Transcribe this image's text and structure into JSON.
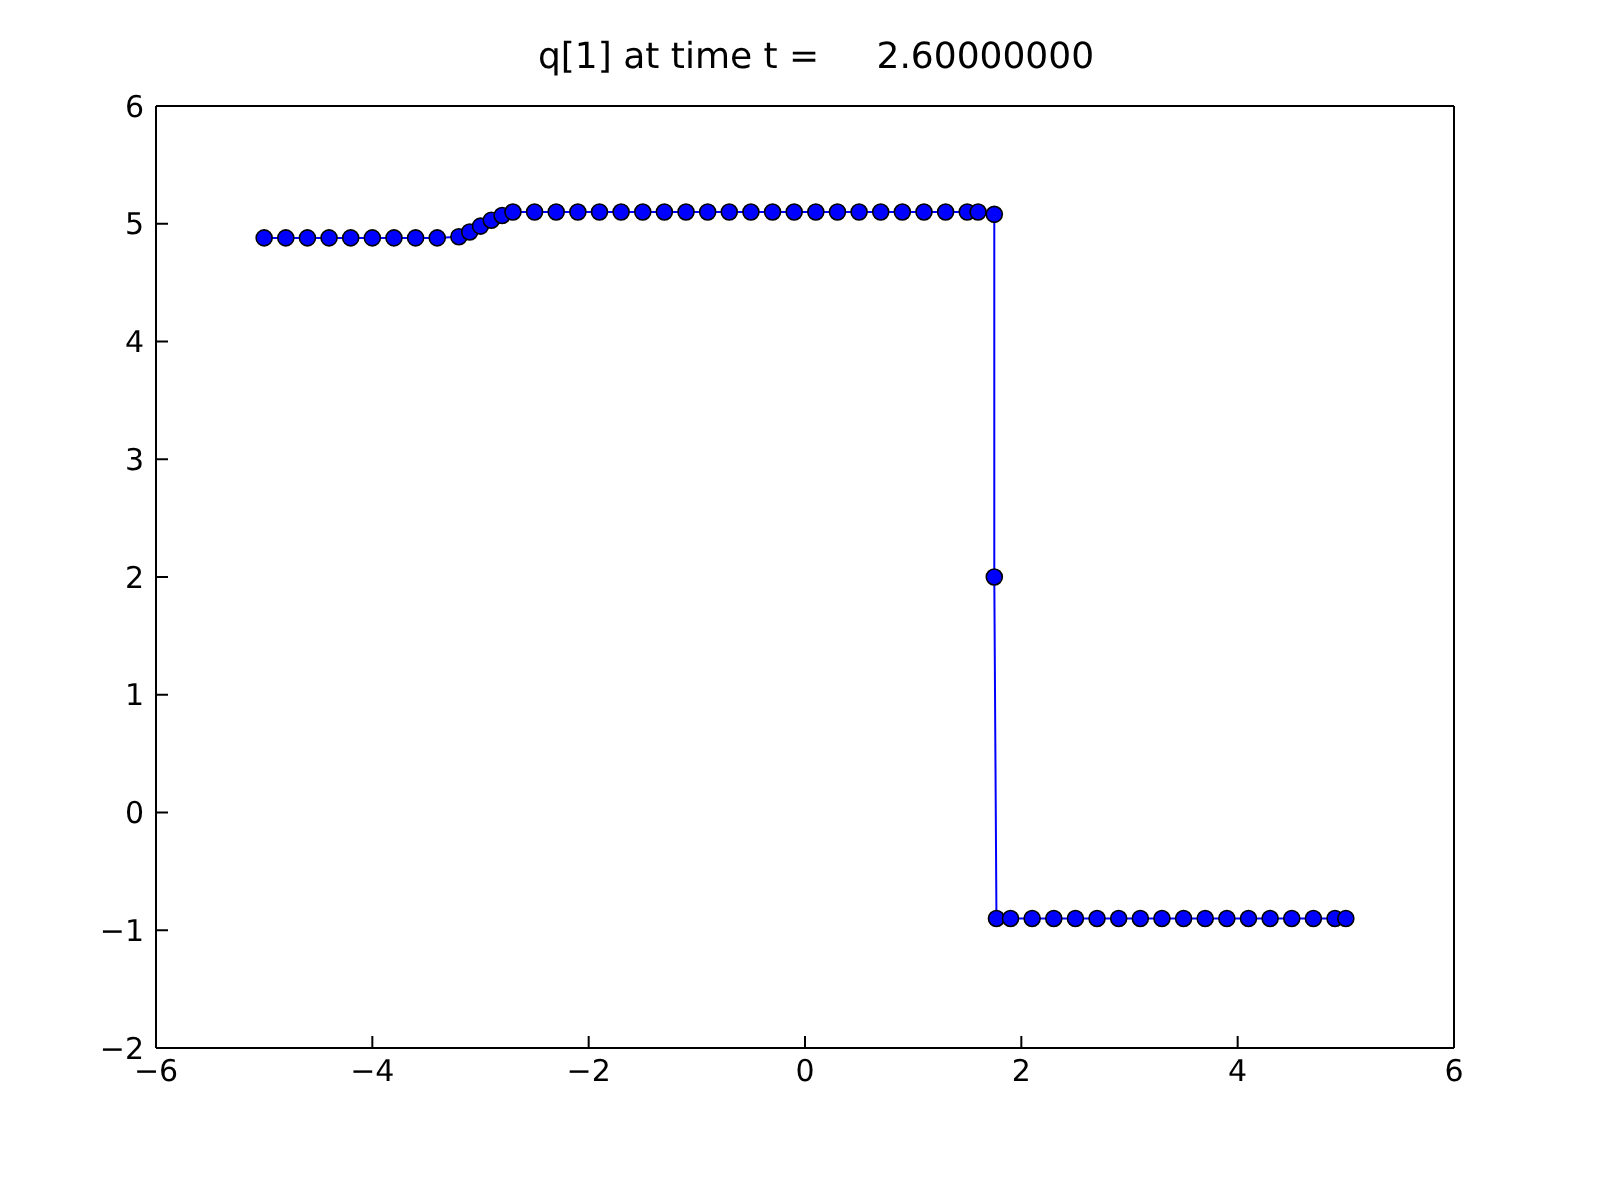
{
  "chart_data": {
    "type": "line",
    "title": "q[1] at time t =     2.60000000",
    "x": [
      -5,
      -4.8,
      -4.6,
      -4.4,
      -4.2,
      -4.0,
      -3.8,
      -3.6,
      -3.4,
      -3.2,
      -3.1,
      -3.0,
      -2.9,
      -2.8,
      -2.7,
      -2.5,
      -2.3,
      -2.1,
      -1.9,
      -1.7,
      -1.5,
      -1.3,
      -1.1,
      -0.9,
      -0.7,
      -0.5,
      -0.3,
      -0.1,
      0.1,
      0.3,
      0.5,
      0.7,
      0.9,
      1.1,
      1.3,
      1.5,
      1.6,
      1.75,
      1.75,
      1.77,
      1.9,
      2.1,
      2.3,
      2.5,
      2.7,
      2.9,
      3.1,
      3.3,
      3.5,
      3.7,
      3.9,
      4.1,
      4.3,
      4.5,
      4.7,
      4.9,
      5.0
    ],
    "series": [
      {
        "color": "#0000ff",
        "values": [
          4.88,
          4.88,
          4.88,
          4.88,
          4.88,
          4.88,
          4.88,
          4.88,
          4.88,
          4.89,
          4.93,
          4.98,
          5.03,
          5.07,
          5.1,
          5.1,
          5.1,
          5.1,
          5.1,
          5.1,
          5.1,
          5.1,
          5.1,
          5.1,
          5.1,
          5.1,
          5.1,
          5.1,
          5.1,
          5.1,
          5.1,
          5.1,
          5.1,
          5.1,
          5.1,
          5.1,
          5.1,
          5.08,
          2.0,
          -0.9,
          -0.9,
          -0.9,
          -0.9,
          -0.9,
          -0.9,
          -0.9,
          -0.9,
          -0.9,
          -0.9,
          -0.9,
          -0.9,
          -0.9,
          -0.9,
          -0.9,
          -0.9,
          -0.9,
          -0.9
        ]
      }
    ],
    "xlim": [
      -6,
      6
    ],
    "xticks": [
      -6,
      -4,
      -2,
      0,
      2,
      4,
      6
    ],
    "ylim": [
      -2,
      6
    ],
    "yticks": [
      -2,
      -1,
      0,
      1,
      2,
      3,
      4,
      5,
      6
    ],
    "marker": "circle",
    "line_style": "solid",
    "grid": false,
    "legend": false
  }
}
